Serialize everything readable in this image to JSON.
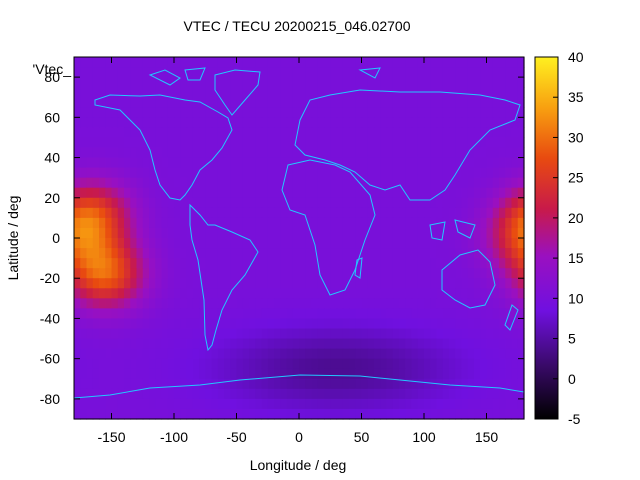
{
  "chart_data": {
    "type": "heatmap",
    "title": "VTEC / TECU 20200215_046.02700",
    "xlabel": "Longitude / deg",
    "ylabel": "Latitude / deg",
    "key_label": "'Vtec_",
    "xlim": [
      -180,
      180
    ],
    "ylim": [
      -90,
      90
    ],
    "xticks": [
      -150,
      -100,
      -50,
      0,
      50,
      100,
      150
    ],
    "yticks": [
      -80,
      -60,
      -40,
      -20,
      0,
      20,
      40,
      60,
      80
    ],
    "color_range": [
      -5,
      40
    ],
    "colorbar_ticks": [
      -5,
      0,
      5,
      10,
      15,
      20,
      25,
      30,
      35,
      40
    ],
    "palette": "black-purple-red-orange-yellow",
    "features": [
      {
        "name": "pacific-crest-north",
        "lon": -165,
        "lat": 12,
        "value": 24
      },
      {
        "name": "pacific-crest-south",
        "lon": -155,
        "lat": -18,
        "value": 28
      },
      {
        "name": "east-edge-crest",
        "lon": 180,
        "lat": 0,
        "value": 21
      },
      {
        "name": "background",
        "value": 10
      },
      {
        "name": "southern-minimum",
        "lon": 30,
        "lat": -65,
        "value": 4
      }
    ]
  }
}
